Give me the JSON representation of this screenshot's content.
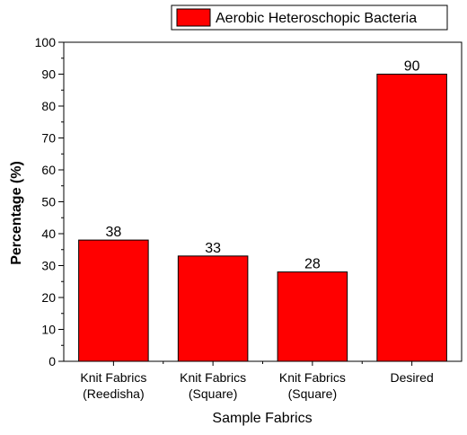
{
  "chart_data": {
    "type": "bar",
    "title": "",
    "xlabel": "Sample Fabrics",
    "ylabel": "Percentage (%)",
    "ylim": [
      0,
      100
    ],
    "yticks": [
      0,
      10,
      20,
      30,
      40,
      50,
      60,
      70,
      80,
      90,
      100
    ],
    "categories": [
      [
        "Knit Fabrics",
        "(Reedisha)"
      ],
      [
        "Knit Fabrics",
        "(Square)"
      ],
      [
        "Knit Fabrics",
        "(Square)"
      ],
      [
        "Desired"
      ]
    ],
    "series": [
      {
        "name": "Aerobic Heteroschopic Bacteria",
        "values": [
          38,
          33,
          28,
          90
        ],
        "color": "#ff0000"
      }
    ],
    "data_labels": [
      "38",
      "33",
      "28",
      "90"
    ],
    "legend_position": "top-right",
    "grid": false
  }
}
